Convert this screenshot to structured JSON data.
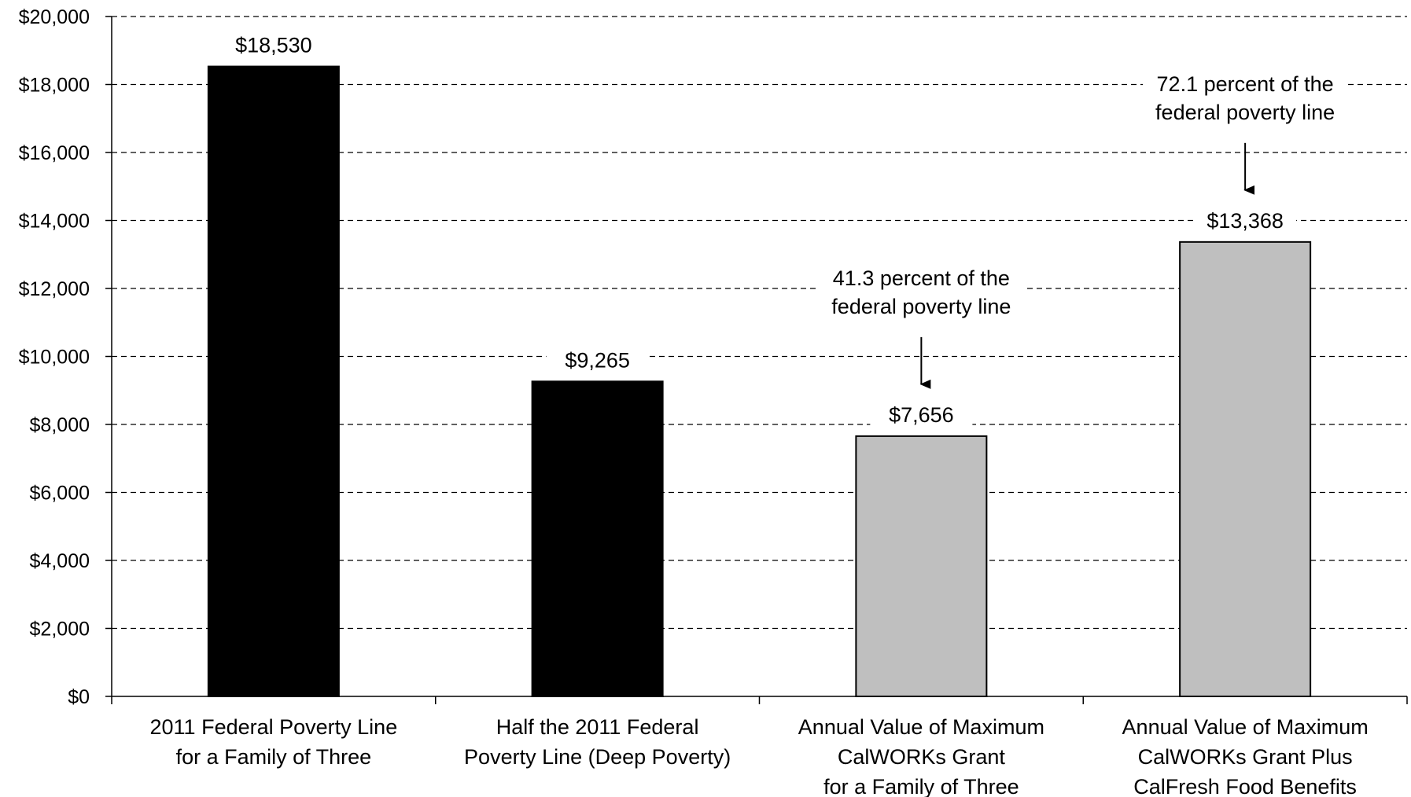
{
  "chart_data": {
    "type": "bar",
    "categories": [
      [
        "2011 Federal Poverty Line",
        "for a Family of Three"
      ],
      [
        "Half the 2011 Federal",
        "Poverty Line (Deep Poverty)"
      ],
      [
        "Annual Value of Maximum",
        "CalWORKs Grant",
        "for a Family of Three"
      ],
      [
        "Annual Value of Maximum",
        "CalWORKs Grant Plus",
        "CalFresh Food Benefits"
      ]
    ],
    "values": [
      18530,
      9265,
      7656,
      13368
    ],
    "value_labels": [
      "$18,530",
      "$9,265",
      "$7,656",
      "$13,368"
    ],
    "bar_colors": [
      "#000000",
      "#000000",
      "#bfbfbf",
      "#bfbfbf"
    ],
    "ylim": [
      0,
      20000
    ],
    "yticks": [
      0,
      2000,
      4000,
      6000,
      8000,
      10000,
      12000,
      14000,
      16000,
      18000,
      20000
    ],
    "ytick_labels": [
      "$0",
      "$2,000",
      "$4,000",
      "$6,000",
      "$8,000",
      "$10,000",
      "$12,000",
      "$14,000",
      "$16,000",
      "$18,000",
      "$20,000"
    ],
    "grid": true,
    "annotations": [
      {
        "bar_index": 2,
        "lines": [
          "41.3 percent of the",
          "federal poverty line"
        ]
      },
      {
        "bar_index": 3,
        "lines": [
          "72.1 percent of the",
          "federal poverty line"
        ]
      }
    ]
  }
}
